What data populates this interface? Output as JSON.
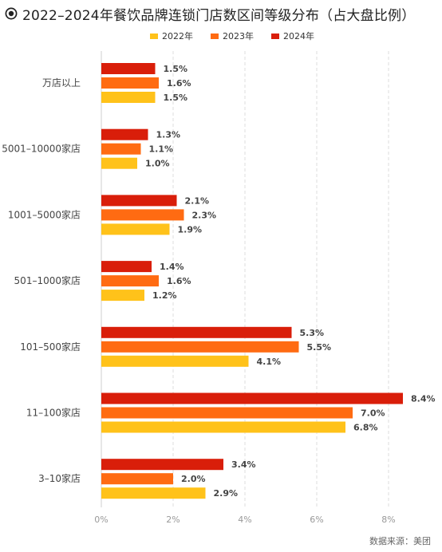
{
  "chart_data": {
    "type": "bar",
    "orientation": "horizontal",
    "title": "2022–2024年餐饮品牌连锁门店数区间等级分布（占大盘比例）",
    "categories": [
      "万店以上",
      "5001–10000家店",
      "1001–5000家店",
      "501–1000家店",
      "101–500家店",
      "11–100家店",
      "3–10家店"
    ],
    "series": [
      {
        "name": "2024年",
        "color": "#d91e0a",
        "values": [
          1.5,
          1.3,
          2.1,
          1.4,
          5.3,
          8.4,
          3.4
        ]
      },
      {
        "name": "2023年",
        "color": "#ff6b12",
        "values": [
          1.6,
          1.1,
          2.3,
          1.6,
          5.5,
          7.0,
          2.0
        ]
      },
      {
        "name": "2022年",
        "color": "#ffc21a",
        "values": [
          1.5,
          1.0,
          1.9,
          1.2,
          4.1,
          6.8,
          2.9
        ]
      }
    ],
    "legend_order": [
      "2022年",
      "2023年",
      "2024年"
    ],
    "x_ticks": [
      "0%",
      "2%",
      "4%",
      "6%",
      "8%"
    ],
    "xlim": [
      0,
      8.9
    ],
    "value_suffix": "%",
    "grid": "vertical-dashed",
    "legend_position": "top"
  },
  "source": "数据来源：美团"
}
